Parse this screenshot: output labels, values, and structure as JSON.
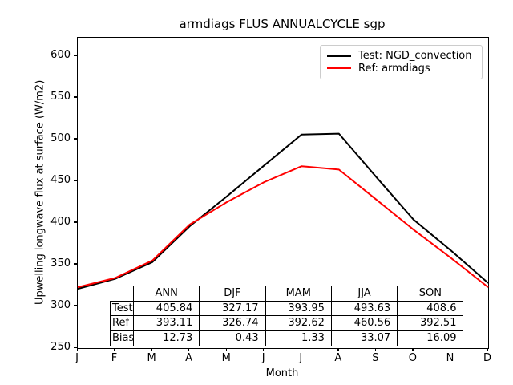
{
  "figure": {
    "title": "armdiags FLUS ANNUALCYCLE sgp",
    "xlabel": "Month",
    "ylabel": "Upwelling longwave flux at surface (W/m2)"
  },
  "legend": {
    "position": "upper right",
    "items": [
      {
        "label": "Test: NGD_convection",
        "color": "#000000"
      },
      {
        "label": "Ref: armdiags",
        "color": "#ff0000"
      }
    ]
  },
  "chart_data": {
    "type": "line",
    "title": "armdiags FLUS ANNUALCYCLE sgp",
    "xlabel": "Month",
    "ylabel": "Upwelling longwave flux at surface (W/m2)",
    "categories": [
      "J",
      "F",
      "M",
      "A",
      "M",
      "J",
      "J",
      "A",
      "S",
      "O",
      "N",
      "D"
    ],
    "y_ticks": [
      250,
      300,
      350,
      400,
      450,
      500,
      550,
      600
    ],
    "ylim": [
      250,
      622
    ],
    "grid": false,
    "legend_position": "upper right",
    "series": [
      {
        "name": "Test: NGD_convection",
        "color": "#000000",
        "values": [
          321,
          333,
          353,
          396,
          432,
          469,
          506,
          507,
          455,
          404,
          367,
          328
        ]
      },
      {
        "name": "Ref: armdiags",
        "color": "#ff0000",
        "values": [
          323,
          334,
          355,
          398,
          425,
          449,
          468,
          464,
          428,
          392,
          358,
          323
        ]
      }
    ]
  },
  "stats_table": {
    "col_headers": [
      "ANN",
      "DJF",
      "MAM",
      "JJA",
      "SON"
    ],
    "rows": [
      {
        "label": "Test",
        "values": [
          "405.84",
          "327.17",
          "393.95",
          "493.63",
          "408.6"
        ]
      },
      {
        "label": "Ref",
        "values": [
          "393.11",
          "326.74",
          "392.62",
          "460.56",
          "392.51"
        ]
      },
      {
        "label": "Bias",
        "values": [
          "12.73",
          "0.43",
          "1.33",
          "33.07",
          "16.09"
        ]
      }
    ]
  }
}
